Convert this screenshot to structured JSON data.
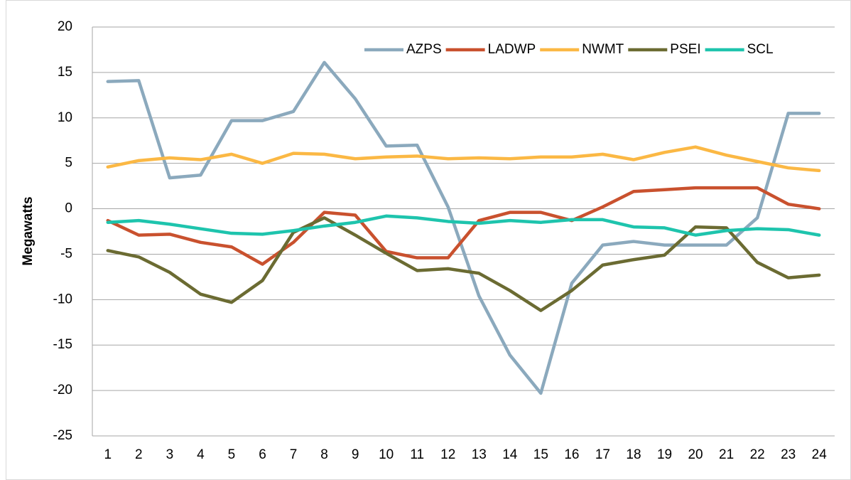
{
  "chart_data": {
    "type": "line",
    "ylabel": "Megawatts",
    "categories": [
      1,
      2,
      3,
      4,
      5,
      6,
      7,
      8,
      9,
      10,
      11,
      12,
      13,
      14,
      15,
      16,
      17,
      18,
      19,
      20,
      21,
      22,
      23,
      24
    ],
    "ylim": [
      -25,
      20
    ],
    "yticks": [
      -25,
      -20,
      -15,
      -10,
      -5,
      0,
      5,
      10,
      15,
      20
    ],
    "grid": true,
    "legend": "top-right",
    "series": [
      {
        "name": "AZPS",
        "color": "#8ba9bd",
        "values": [
          14,
          14.1,
          3.4,
          3.7,
          9.7,
          9.7,
          10.7,
          16.1,
          12.1,
          6.9,
          7.0,
          0.2,
          -9.6,
          -16.1,
          -20.3,
          -8.2,
          -4.0,
          -3.6,
          -4.0,
          -4.0,
          -4.0,
          -1.0,
          10.5,
          10.5
        ]
      },
      {
        "name": "LADWP",
        "color": "#c9512e",
        "values": [
          -1.3,
          -2.9,
          -2.8,
          -3.7,
          -4.2,
          -6.1,
          -3.7,
          -0.4,
          -0.7,
          -4.7,
          -5.4,
          -5.4,
          -1.3,
          -0.4,
          -0.4,
          -1.3,
          0.2,
          1.9,
          2.1,
          2.3,
          2.3,
          2.3,
          0.5,
          0
        ]
      },
      {
        "name": "NWMT",
        "color": "#fbb844",
        "values": [
          4.6,
          5.3,
          5.6,
          5.4,
          6.0,
          5.0,
          6.1,
          6.0,
          5.5,
          5.7,
          5.8,
          5.5,
          5.6,
          5.5,
          5.7,
          5.7,
          6.0,
          5.4,
          6.2,
          6.8,
          5.9,
          5.2,
          4.5,
          4.2
        ]
      },
      {
        "name": "PSEI",
        "color": "#6b6b32",
        "values": [
          -4.6,
          -5.3,
          -7.0,
          -9.4,
          -10.3,
          -7.9,
          -2.6,
          -1.0,
          -2.9,
          -4.9,
          -6.8,
          -6.6,
          -7.1,
          -9.0,
          -11.2,
          -9.0,
          -6.2,
          -5.6,
          -5.1,
          -2.0,
          -2.1,
          -5.9,
          -7.6,
          -7.3
        ]
      },
      {
        "name": "SCL",
        "color": "#1ec4ad",
        "values": [
          -1.5,
          -1.3,
          -1.7,
          -2.2,
          -2.7,
          -2.8,
          -2.4,
          -1.9,
          -1.5,
          -0.8,
          -1.0,
          -1.4,
          -1.6,
          -1.3,
          -1.5,
          -1.2,
          -1.2,
          -2.0,
          -2.1,
          -2.9,
          -2.4,
          -2.2,
          -2.3,
          -2.9
        ]
      }
    ]
  }
}
